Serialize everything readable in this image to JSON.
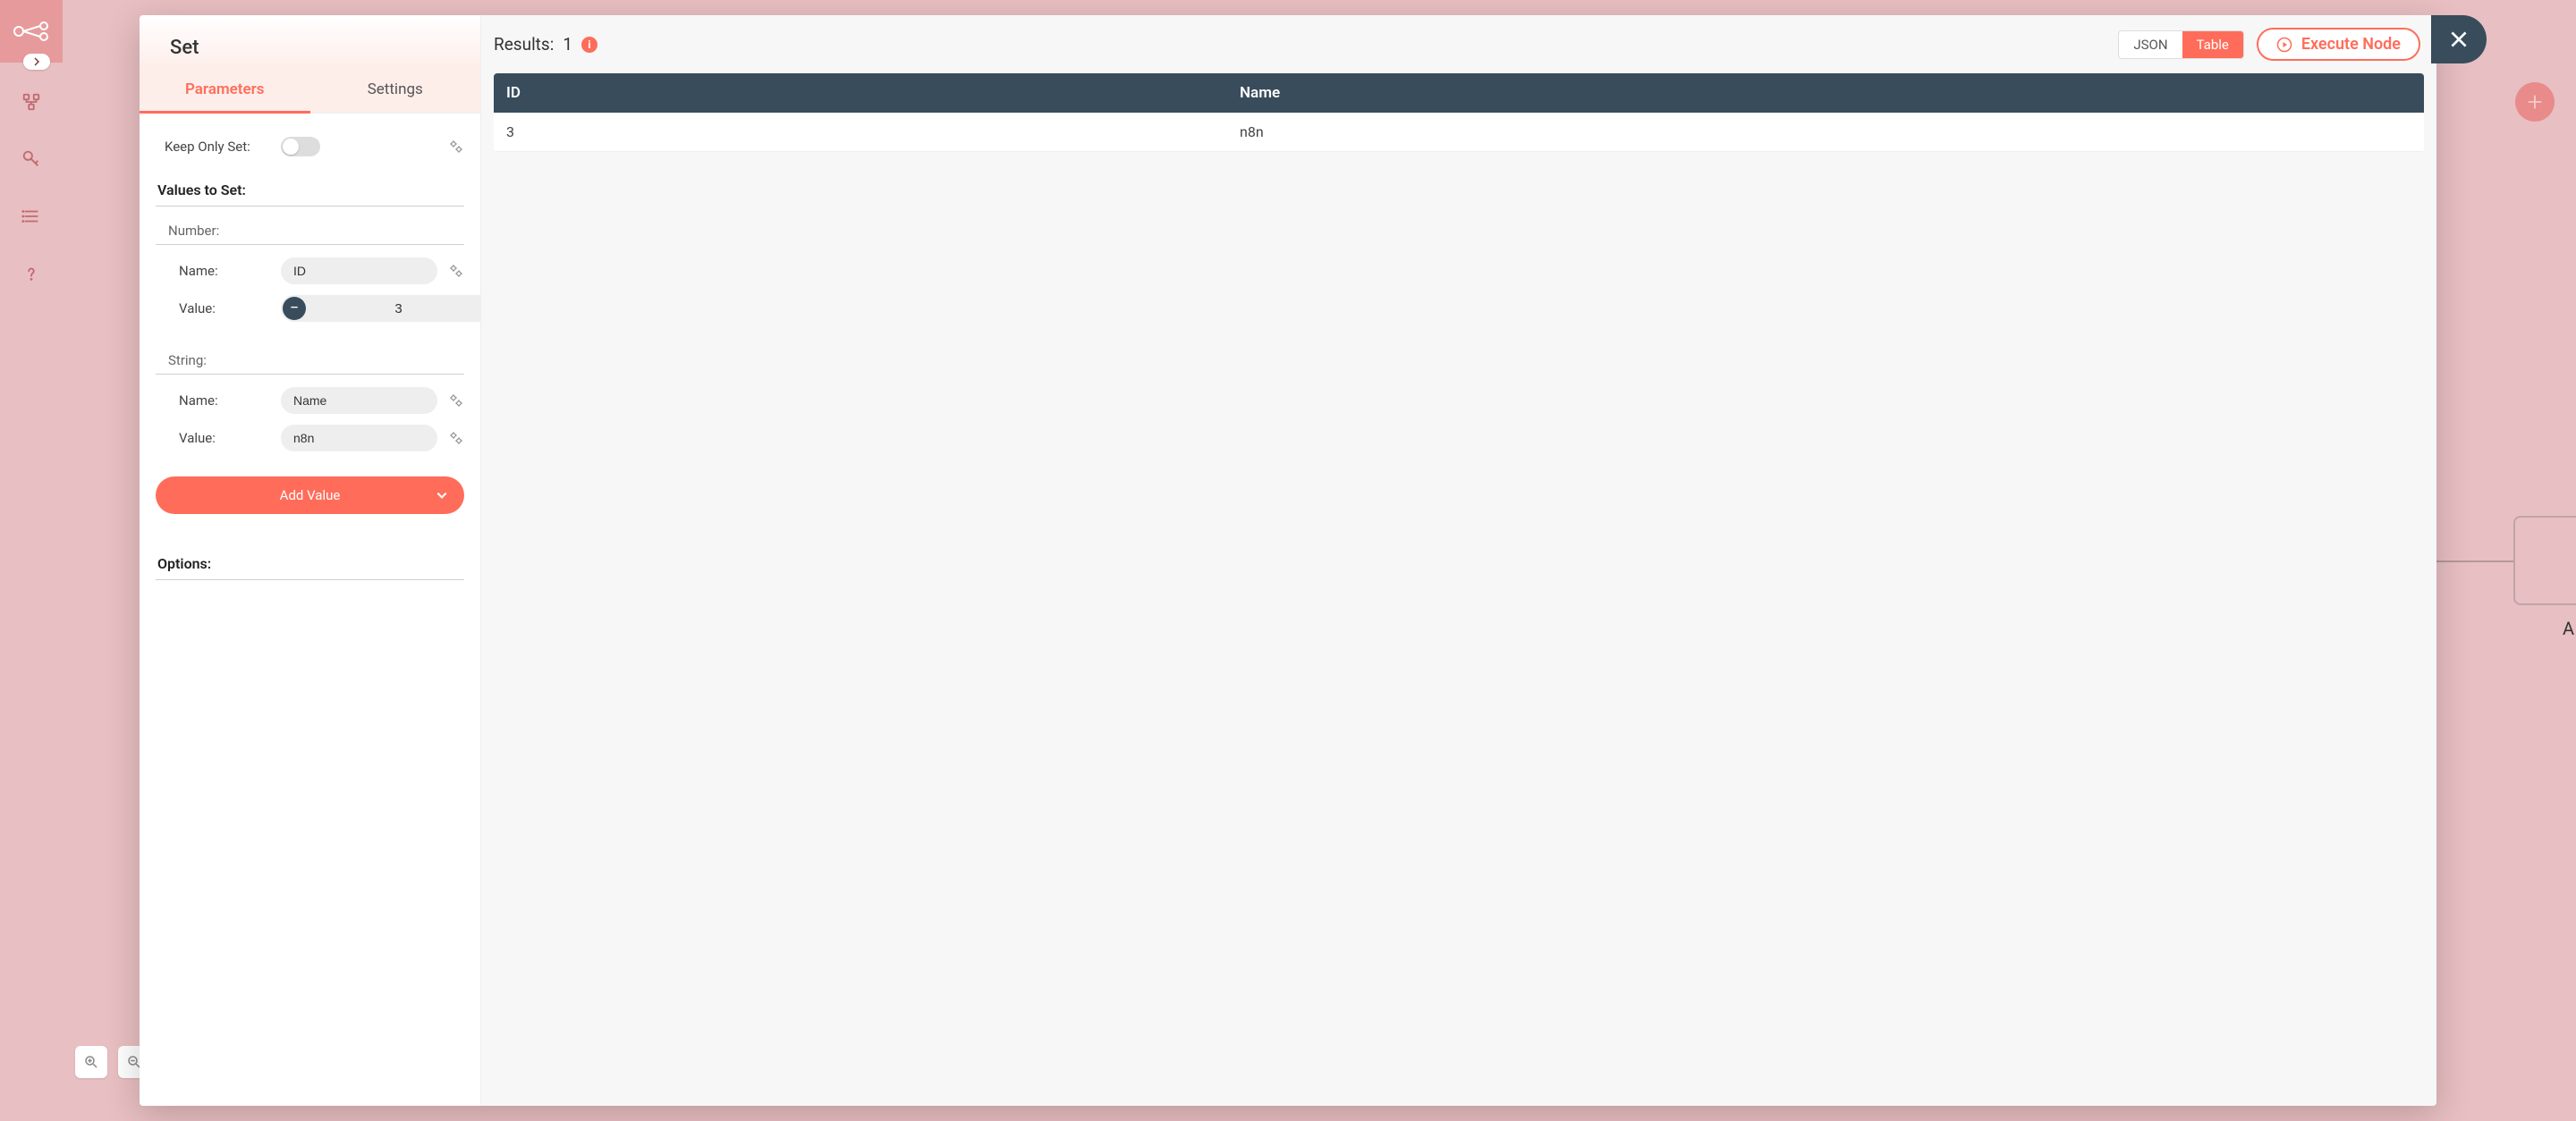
{
  "sidebar": {
    "logo": "n8n-logo",
    "items": [
      {
        "name": "workflows-icon"
      },
      {
        "name": "credentials-icon"
      },
      {
        "name": "executions-icon"
      },
      {
        "name": "help-icon"
      }
    ]
  },
  "canvas": {
    "fab_title": "Add node",
    "bg_node_label": "A"
  },
  "modal": {
    "title": "Set",
    "tabs": {
      "parameters": "Parameters",
      "settings": "Settings",
      "active": "parameters"
    },
    "params": {
      "keep_only_set": {
        "label": "Keep Only Set:",
        "value": false
      },
      "values_to_set_title": "Values to Set:",
      "number_section": {
        "title": "Number:",
        "name_label": "Name:",
        "name_value": "ID",
        "value_label": "Value:",
        "value_value": "3"
      },
      "string_section": {
        "title": "String:",
        "name_label": "Name:",
        "name_value": "Name",
        "value_label": "Value:",
        "value_value": "n8n"
      },
      "add_value_label": "Add Value",
      "options_title": "Options:"
    },
    "results": {
      "label": "Results:",
      "count": "1",
      "view_json": "JSON",
      "view_table": "Table",
      "view_active": "table",
      "execute_label": "Execute Node",
      "columns": [
        "ID",
        "Name"
      ],
      "rows": [
        [
          "3",
          "n8n"
        ]
      ]
    },
    "close_label": "Close"
  },
  "colors": {
    "orange": "#ff6d5a",
    "slate": "#384c5c",
    "bg_pink": "#e8bfc2"
  }
}
